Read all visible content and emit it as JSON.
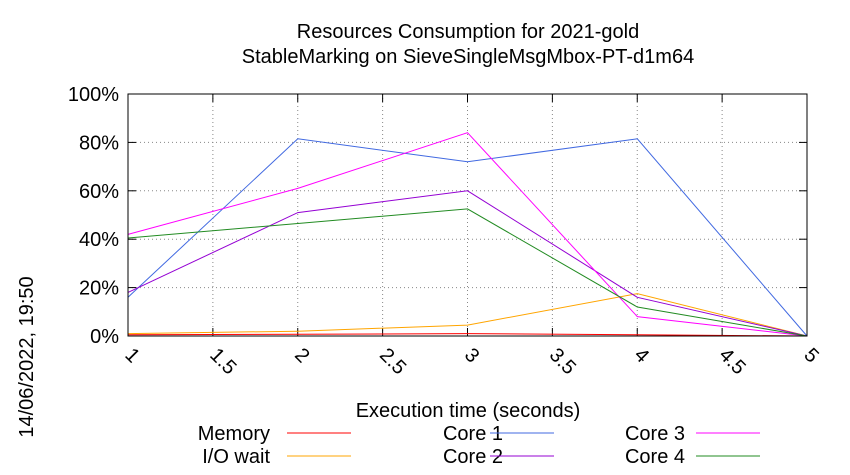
{
  "chart_data": {
    "type": "line",
    "title_line1": "Resources Consumption for 2021-gold",
    "title_line2": "StableMarking on SieveSingleMsgMbox-PT-d1m64",
    "xlabel": "Execution time (seconds)",
    "ylabel": "",
    "side_label": "14/06/2022, 19:50",
    "xlim": [
      1,
      5
    ],
    "ylim": [
      0,
      100
    ],
    "x_ticks": [
      "1",
      "1.5",
      "2",
      "2.5",
      "3",
      "3.5",
      "4",
      "4.5",
      "5"
    ],
    "y_ticks": [
      "0%",
      "20%",
      "40%",
      "60%",
      "80%",
      "100%"
    ],
    "grid": true,
    "legend_position": "bottom",
    "x": [
      1,
      2,
      3,
      4,
      5
    ],
    "series": [
      {
        "name": "Memory",
        "color": "#ff0000",
        "values": [
          0.5,
          0.7,
          1.0,
          0.5,
          0
        ]
      },
      {
        "name": "I/O wait",
        "color": "#ffa500",
        "values": [
          1,
          2,
          4.5,
          17.5,
          0
        ]
      },
      {
        "name": "Core 1",
        "color": "#4169e1",
        "values": [
          16,
          81.5,
          72,
          81.5,
          0
        ]
      },
      {
        "name": "Core 2",
        "color": "#9400d3",
        "values": [
          18,
          51,
          60,
          16,
          0
        ]
      },
      {
        "name": "Core 3",
        "color": "#ff00ff",
        "values": [
          42,
          61,
          84,
          8,
          0
        ]
      },
      {
        "name": "Core 4",
        "color": "#228b22",
        "values": [
          40.5,
          46.5,
          52.5,
          12,
          0
        ]
      }
    ]
  }
}
